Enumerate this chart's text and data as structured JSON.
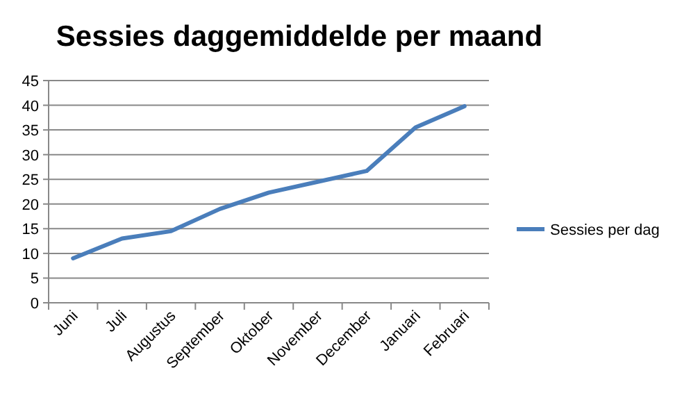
{
  "chart_data": {
    "type": "line",
    "title": "Sessies daggemiddelde per maand",
    "categories": [
      "Juni",
      "Juli",
      "Augustus",
      "September",
      "Oktober",
      "November",
      "December",
      "Januari",
      "Februari"
    ],
    "series": [
      {
        "name": "Sessies per dag",
        "color": "#4a7ebb",
        "values": [
          9,
          13,
          14.5,
          19,
          22.3,
          24.5,
          26.7,
          35.5,
          39.8
        ]
      }
    ],
    "ylim": [
      0,
      45
    ],
    "yticks": [
      0,
      5,
      10,
      15,
      20,
      25,
      30,
      35,
      40,
      45
    ],
    "grid": "y",
    "legend": "right",
    "marker": "none",
    "line_style": "solid"
  }
}
